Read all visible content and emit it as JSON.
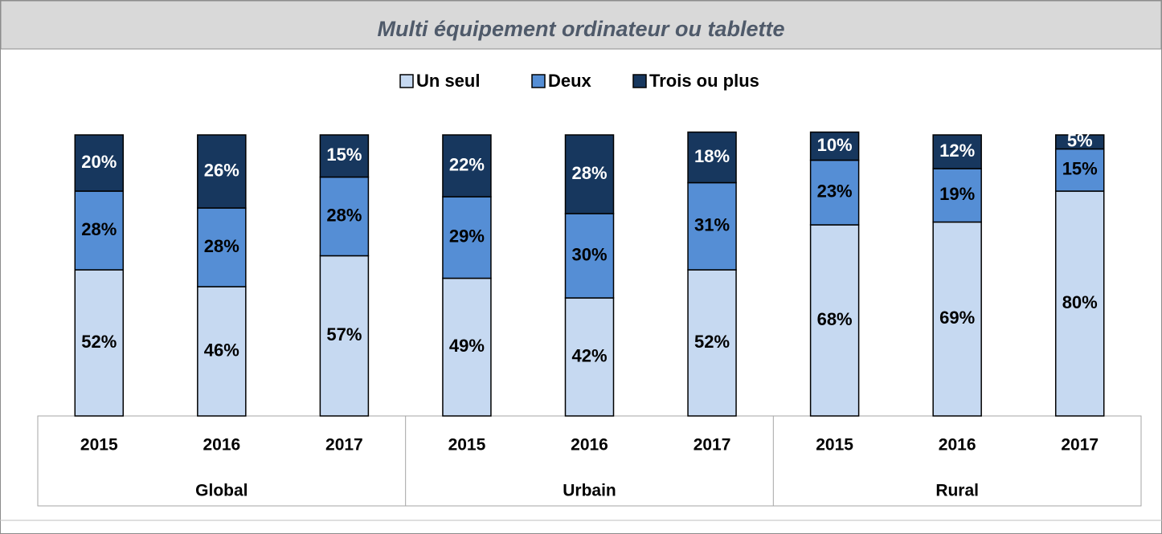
{
  "chart_data": {
    "type": "stacked_bar",
    "title": "Multi équipement ordinateur ou tablette",
    "categories": [
      "2015",
      "2016",
      "2017",
      "2015",
      "2016",
      "2017",
      "2015",
      "2016",
      "2017"
    ],
    "groups": [
      "Global",
      "Urbain",
      "Rural"
    ],
    "ylim": [
      0,
      100
    ],
    "series": [
      {
        "name": "Un seul",
        "color": "#c6d9f1",
        "label_color": "#000000",
        "values": [
          52,
          46,
          57,
          49,
          42,
          52,
          68,
          69,
          80
        ],
        "value_labels": [
          "52%",
          "46%",
          "57%",
          "49%",
          "42%",
          "52%",
          "68%",
          "69%",
          "80%"
        ]
      },
      {
        "name": "Deux",
        "color": "#558ed5",
        "label_color": "#000000",
        "values": [
          28,
          28,
          28,
          29,
          30,
          31,
          23,
          19,
          15
        ],
        "value_labels": [
          "28%",
          "28%",
          "28%",
          "29%",
          "30%",
          "31%",
          "23%",
          "19%",
          "15%"
        ]
      },
      {
        "name": "Trois ou plus",
        "color": "#17375e",
        "label_color": "#ffffff",
        "values": [
          20,
          26,
          15,
          22,
          28,
          18,
          10,
          12,
          5
        ],
        "value_labels": [
          "20%",
          "26%",
          "15%",
          "22%",
          "28%",
          "18%",
          "10%",
          "12%",
          "5%"
        ]
      }
    ]
  }
}
